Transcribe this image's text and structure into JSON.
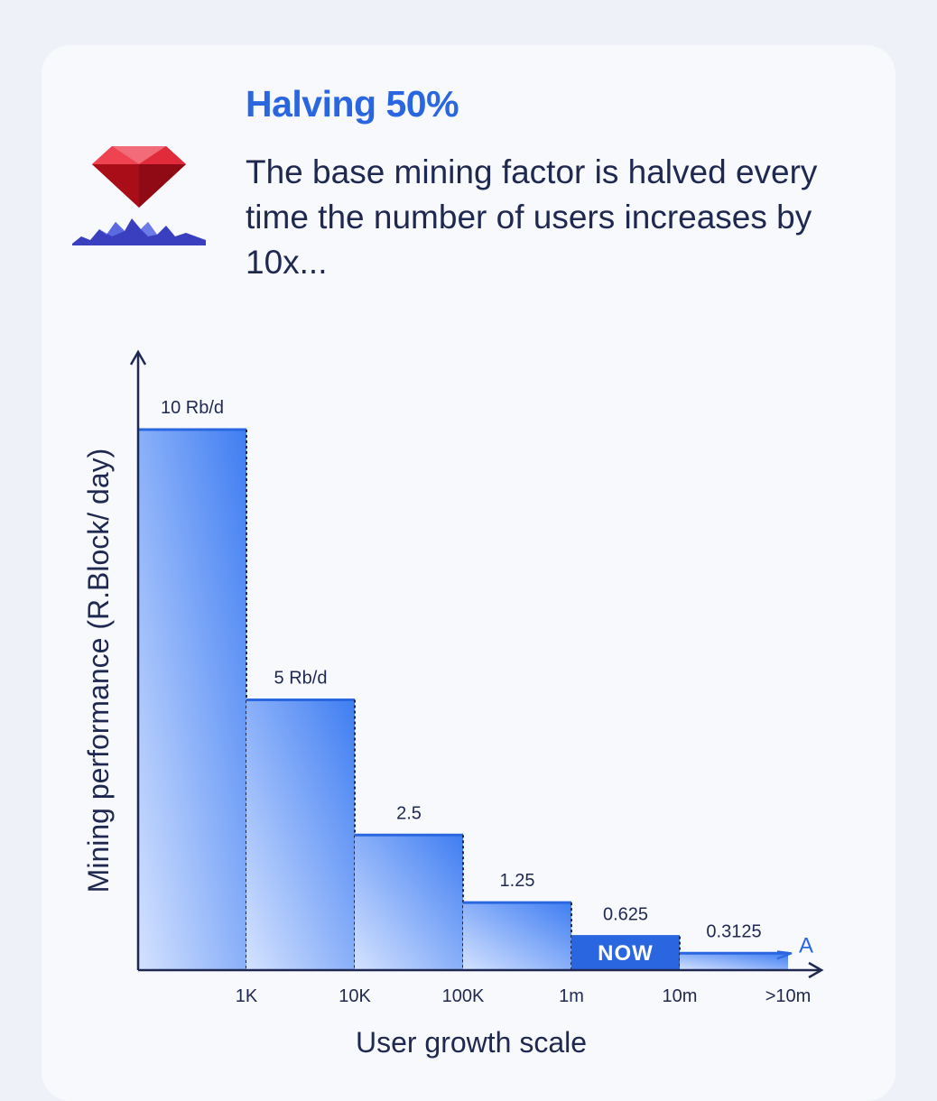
{
  "header": {
    "title": "Halving 50%",
    "description": "The base mining factor is halved every time the number of users increases by 10x..."
  },
  "chart_data": {
    "type": "bar",
    "title": "",
    "xlabel": "User growth scale",
    "ylabel": "Mining performance (R.Block/ day)",
    "categories": [
      "1K",
      "10K",
      "100K",
      "1m",
      "10m",
      ">10m"
    ],
    "values": [
      10,
      5,
      2.5,
      1.25,
      0.625,
      0.3125
    ],
    "value_labels": [
      "10 Rb/d",
      "5 Rb/d",
      "2.5",
      "1.25",
      "0.625",
      "0.3125"
    ],
    "ylim": [
      0,
      10
    ],
    "highlight": {
      "index": 4,
      "label": "NOW"
    },
    "end_marker": "A",
    "grid": false,
    "colors": {
      "bar_top": "#3f7df2",
      "bar_bottom": "#c9dafe",
      "highlight": "#2a66e0",
      "axis": "#1f2850"
    }
  }
}
